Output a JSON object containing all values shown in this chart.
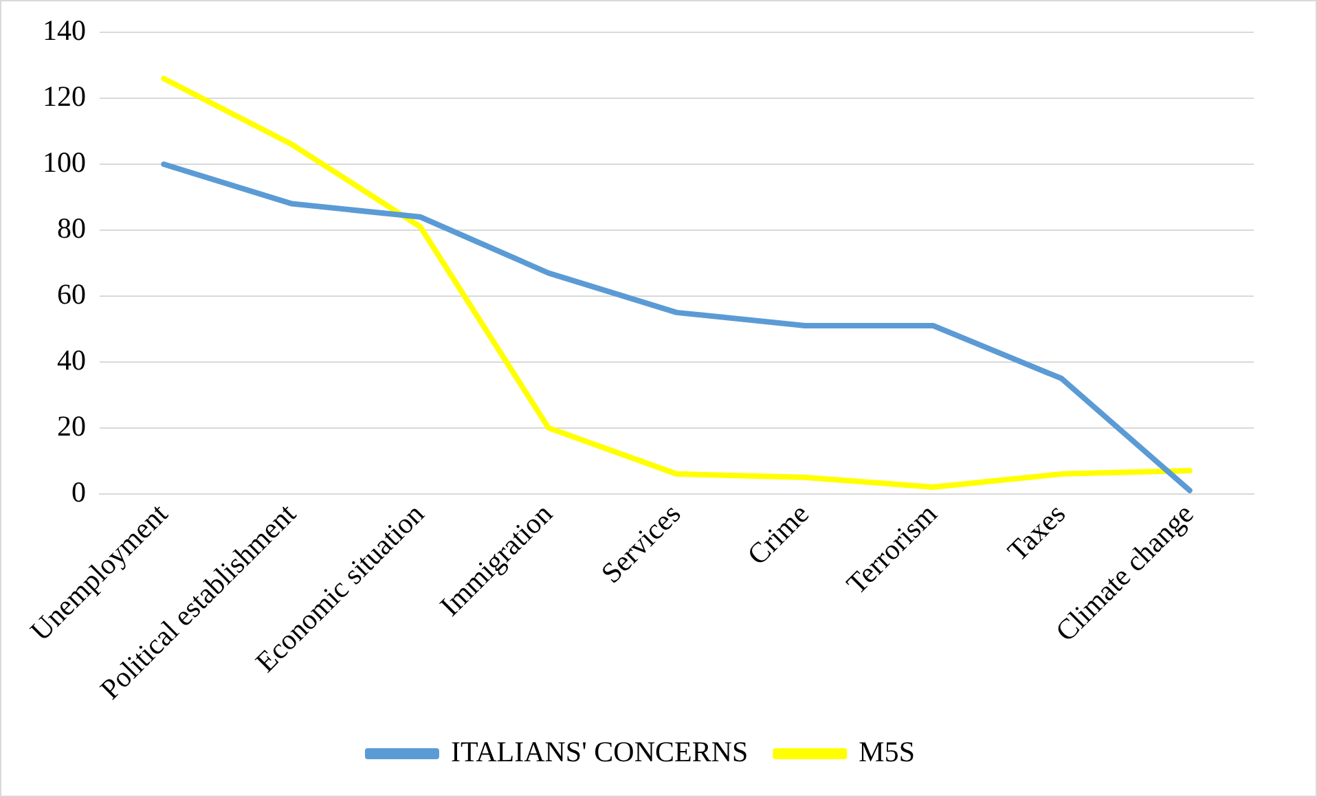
{
  "chart_data": {
    "type": "line",
    "categories": [
      "Unemployment",
      "Political establishment",
      "Economic situation",
      "Immigration",
      "Services",
      "Crime",
      "Terrorism",
      "Taxes",
      "Climate change"
    ],
    "series": [
      {
        "name": "ITALIANS' CONCERNS",
        "color": "#5b9bd5",
        "values": [
          100,
          88,
          84,
          67,
          55,
          51,
          51,
          35,
          1
        ]
      },
      {
        "name": "M5S",
        "color": "#ffff00",
        "values": [
          126,
          106,
          81,
          20,
          6,
          5,
          2,
          6,
          7
        ]
      }
    ],
    "ylim": [
      0,
      140
    ],
    "yticks": [
      0,
      20,
      40,
      60,
      80,
      100,
      120,
      140
    ],
    "grid": "y",
    "legend": "bottom",
    "marker": "none",
    "line_style": "solid"
  }
}
